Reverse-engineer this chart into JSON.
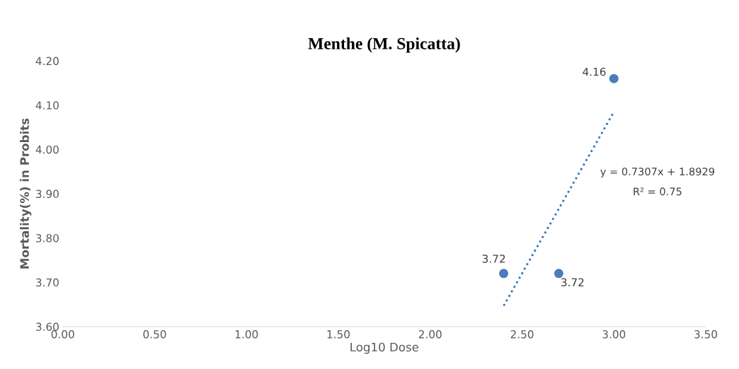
{
  "chart_data": {
    "type": "scatter",
    "title": "Menthe (M. Spicatta)",
    "xlabel": "Log10 Dose",
    "ylabel": "Mortality(%) in Probits",
    "series": [
      {
        "color": "#4a7ebb",
        "x": [
          2.4,
          2.7,
          3.0
        ],
        "values": [
          3.72,
          3.72,
          4.16
        ],
        "value_labels": [
          "3.72",
          "3.72",
          "4.16"
        ]
      },
      {
        "type": "line",
        "color": "#2e75b6",
        "line_style": "dotted",
        "marker": "none",
        "x": [
          2.4,
          3.0
        ],
        "values": [
          3.647,
          4.085
        ]
      }
    ],
    "annotations": [
      "y = 0.7307x + 1.8929",
      "R² = 0.75"
    ],
    "xlim": [
      0.0,
      3.5
    ],
    "xticks": [
      {
        "value": 0,
        "label": "0.00"
      },
      {
        "value": 0.5,
        "label": "0.50"
      },
      {
        "value": 1,
        "label": "1.00"
      },
      {
        "value": 1.5,
        "label": "1.50"
      },
      {
        "value": 2,
        "label": "2.00"
      },
      {
        "value": 2.5,
        "label": "2.50"
      },
      {
        "value": 3,
        "label": "3.00"
      },
      {
        "value": 3.5,
        "label": "3.50"
      }
    ],
    "ylim": [
      3.6,
      4.2
    ],
    "yticks": [
      {
        "value": 3.6,
        "label": "3.60"
      },
      {
        "value": 3.7,
        "label": "3.70"
      },
      {
        "value": 3.8,
        "label": "3.80"
      },
      {
        "value": 3.9,
        "label": "3.90"
      },
      {
        "value": 4.0,
        "label": "4.00"
      },
      {
        "value": 4.1,
        "label": "4.10"
      },
      {
        "value": 4.2,
        "label": "4.20"
      }
    ],
    "grid": false,
    "marker": "circle"
  }
}
